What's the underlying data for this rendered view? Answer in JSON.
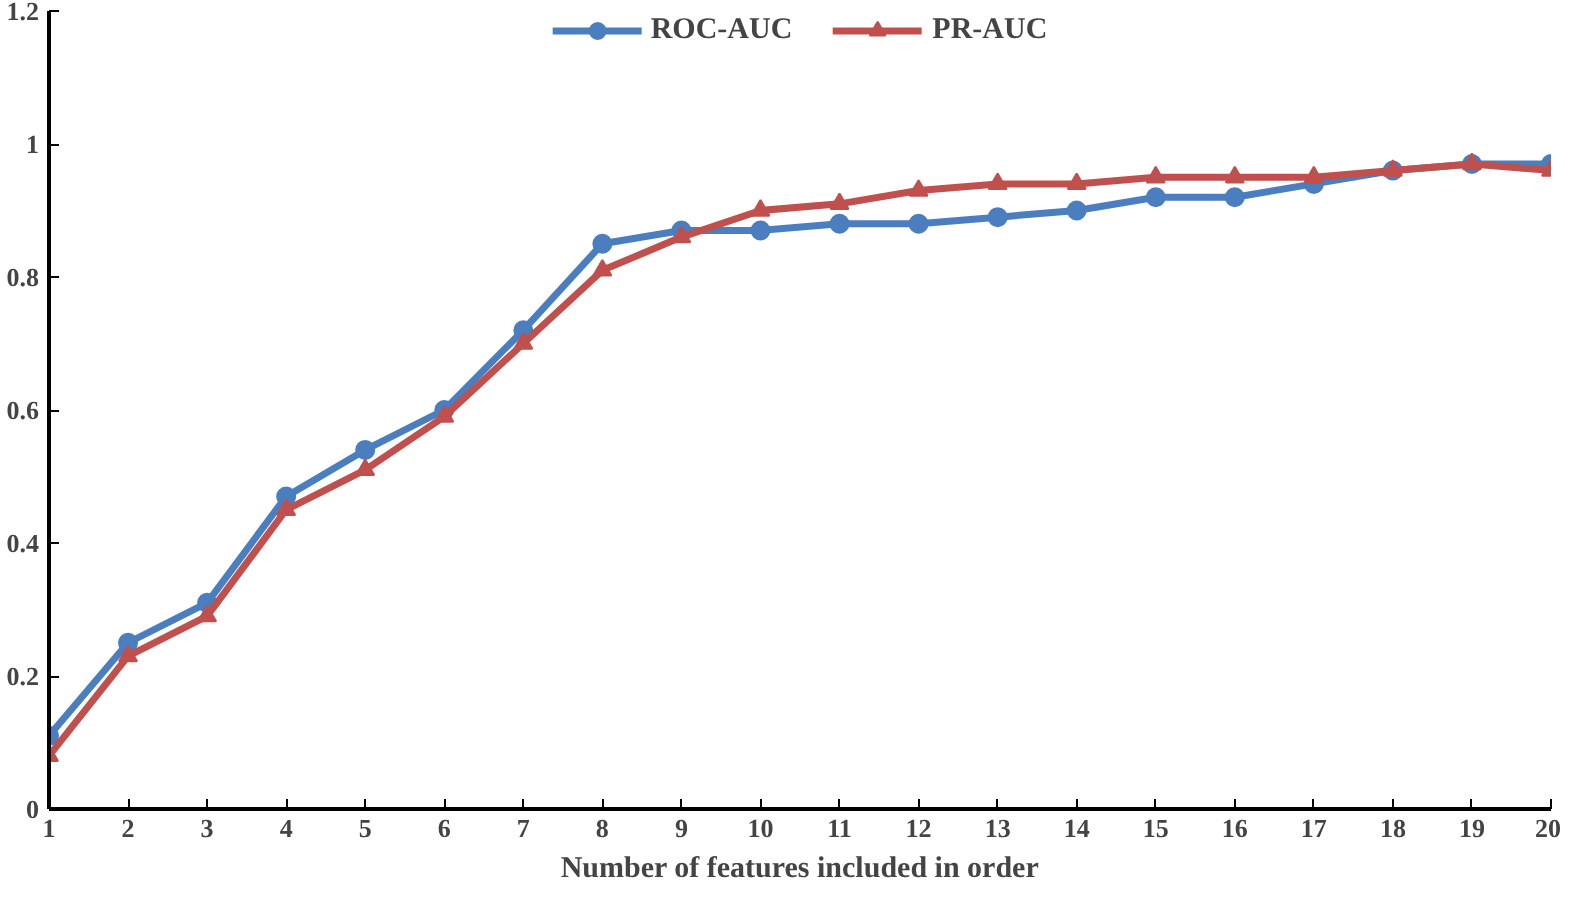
{
  "chart_data": {
    "type": "line",
    "xlabel": "Number of features included in order",
    "x": [
      1,
      2,
      3,
      4,
      5,
      6,
      7,
      8,
      9,
      10,
      11,
      12,
      13,
      14,
      15,
      16,
      17,
      18,
      19,
      20
    ],
    "series": [
      {
        "name": "ROC-AUC",
        "color": "#4a7ebf",
        "marker": "circle",
        "values": [
          0.11,
          0.25,
          0.31,
          0.47,
          0.54,
          0.6,
          0.72,
          0.85,
          0.87,
          0.87,
          0.88,
          0.88,
          0.89,
          0.9,
          0.92,
          0.92,
          0.94,
          0.96,
          0.97,
          0.97
        ]
      },
      {
        "name": "PR-AUC",
        "color": "#c0504d",
        "marker": "triangle",
        "values": [
          0.08,
          0.23,
          0.29,
          0.45,
          0.51,
          0.59,
          0.7,
          0.81,
          0.86,
          0.9,
          0.91,
          0.93,
          0.94,
          0.94,
          0.95,
          0.95,
          0.95,
          0.96,
          0.97,
          0.96
        ]
      }
    ],
    "xlim": [
      1,
      20
    ],
    "xticks": [
      1,
      2,
      3,
      4,
      5,
      6,
      7,
      8,
      9,
      10,
      11,
      12,
      13,
      14,
      15,
      16,
      17,
      18,
      19,
      20
    ],
    "ylim": [
      0,
      1.2
    ],
    "yticks": [
      0,
      0.2,
      0.4,
      0.6,
      0.8,
      1,
      1.2
    ],
    "grid": false,
    "legend": "top",
    "line_style": "solid"
  }
}
